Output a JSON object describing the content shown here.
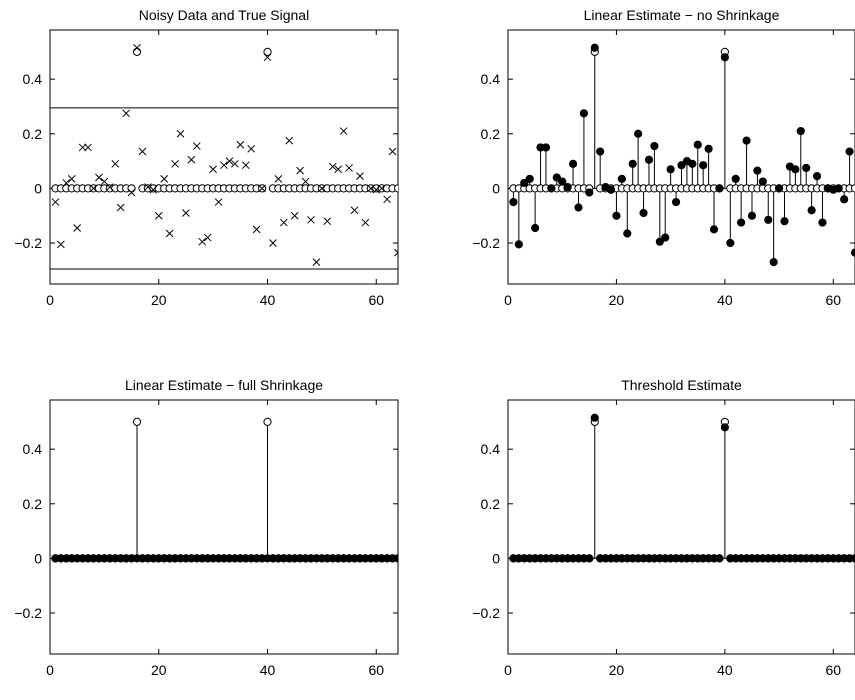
{
  "chart_data": [
    {
      "type": "scatter",
      "title": "Noisy Data and True Signal",
      "xlabel": "",
      "ylabel": "",
      "xlim": [
        0,
        64
      ],
      "ylim": [
        -0.35,
        0.58
      ],
      "xticks": [
        0,
        20,
        40,
        60
      ],
      "yticks": [
        -0.2,
        0,
        0.2,
        0.4
      ],
      "ytick_labels": [
        "−0.2",
        "0",
        "0.2",
        "0.4"
      ],
      "grid": false,
      "hlines": [
        0.295,
        -0.295
      ],
      "series": [
        {
          "marker": "circle",
          "x": [
            1,
            2,
            3,
            4,
            5,
            6,
            7,
            8,
            9,
            10,
            11,
            12,
            13,
            14,
            15,
            16,
            17,
            18,
            19,
            20,
            21,
            22,
            23,
            24,
            25,
            26,
            27,
            28,
            29,
            30,
            31,
            32,
            33,
            34,
            35,
            36,
            37,
            38,
            39,
            40,
            41,
            42,
            43,
            44,
            45,
            46,
            47,
            48,
            49,
            50,
            51,
            52,
            53,
            54,
            55,
            56,
            57,
            58,
            59,
            60,
            61,
            62,
            63,
            64
          ],
          "values": [
            0,
            0,
            0,
            0,
            0,
            0,
            0,
            0,
            0,
            0,
            0,
            0,
            0,
            0,
            0,
            0.5,
            0,
            0,
            0,
            0,
            0,
            0,
            0,
            0,
            0,
            0,
            0,
            0,
            0,
            0,
            0,
            0,
            0,
            0,
            0,
            0,
            0,
            0,
            0,
            0.5,
            0,
            0,
            0,
            0,
            0,
            0,
            0,
            0,
            0,
            0,
            0,
            0,
            0,
            0,
            0,
            0,
            0,
            0,
            0,
            0,
            0,
            0,
            0,
            0
          ]
        },
        {
          "marker": "x",
          "x": [
            1,
            2,
            3,
            4,
            5,
            6,
            7,
            8,
            9,
            10,
            11,
            12,
            13,
            14,
            15,
            16,
            17,
            18,
            19,
            20,
            21,
            22,
            23,
            24,
            25,
            26,
            27,
            28,
            29,
            30,
            31,
            32,
            33,
            34,
            35,
            36,
            37,
            38,
            39,
            40,
            41,
            42,
            43,
            44,
            45,
            46,
            47,
            48,
            49,
            50,
            51,
            52,
            53,
            54,
            55,
            56,
            57,
            58,
            59,
            60,
            61,
            62,
            63,
            64
          ],
          "values": [
            -0.05,
            -0.205,
            0.02,
            0.035,
            -0.145,
            0.15,
            0.15,
            0,
            0.04,
            0.025,
            0.005,
            0.09,
            -0.07,
            0.275,
            -0.015,
            0.515,
            0.135,
            0.005,
            -0.005,
            -0.1,
            0.035,
            -0.165,
            0.09,
            0.2,
            -0.09,
            0.105,
            0.155,
            -0.195,
            -0.18,
            0.07,
            -0.05,
            0.085,
            0.1,
            0.09,
            0.16,
            0.085,
            0.145,
            -0.15,
            0,
            0.48,
            -0.2,
            0.035,
            -0.125,
            0.175,
            -0.1,
            0.065,
            0.025,
            -0.115,
            -0.27,
            0,
            -0.12,
            0.08,
            0.07,
            0.21,
            0.075,
            -0.08,
            0.045,
            -0.125,
            0,
            -0.005,
            0,
            -0.04,
            0.135,
            -0.235
          ]
        }
      ]
    },
    {
      "type": "stem",
      "title": "Linear Estimate − no Shrinkage",
      "xlabel": "",
      "ylabel": "",
      "xlim": [
        0,
        64
      ],
      "ylim": [
        -0.35,
        0.58
      ],
      "xticks": [
        0,
        20,
        40,
        60
      ],
      "yticks": [
        -0.2,
        0,
        0.2,
        0.4
      ],
      "ytick_labels": [
        "−0.2",
        "0",
        "0.2",
        "0.4"
      ],
      "grid": false,
      "series": [
        {
          "marker": "circle",
          "x": [
            1,
            2,
            3,
            4,
            5,
            6,
            7,
            8,
            9,
            10,
            11,
            12,
            13,
            14,
            15,
            16,
            17,
            18,
            19,
            20,
            21,
            22,
            23,
            24,
            25,
            26,
            27,
            28,
            29,
            30,
            31,
            32,
            33,
            34,
            35,
            36,
            37,
            38,
            39,
            40,
            41,
            42,
            43,
            44,
            45,
            46,
            47,
            48,
            49,
            50,
            51,
            52,
            53,
            54,
            55,
            56,
            57,
            58,
            59,
            60,
            61,
            62,
            63,
            64
          ],
          "values": [
            0,
            0,
            0,
            0,
            0,
            0,
            0,
            0,
            0,
            0,
            0,
            0,
            0,
            0,
            0,
            0.5,
            0,
            0,
            0,
            0,
            0,
            0,
            0,
            0,
            0,
            0,
            0,
            0,
            0,
            0,
            0,
            0,
            0,
            0,
            0,
            0,
            0,
            0,
            0,
            0.5,
            0,
            0,
            0,
            0,
            0,
            0,
            0,
            0,
            0,
            0,
            0,
            0,
            0,
            0,
            0,
            0,
            0,
            0,
            0,
            0,
            0,
            0,
            0,
            0
          ]
        },
        {
          "marker": "dot-stem",
          "x": [
            1,
            2,
            3,
            4,
            5,
            6,
            7,
            8,
            9,
            10,
            11,
            12,
            13,
            14,
            15,
            16,
            17,
            18,
            19,
            20,
            21,
            22,
            23,
            24,
            25,
            26,
            27,
            28,
            29,
            30,
            31,
            32,
            33,
            34,
            35,
            36,
            37,
            38,
            39,
            40,
            41,
            42,
            43,
            44,
            45,
            46,
            47,
            48,
            49,
            50,
            51,
            52,
            53,
            54,
            55,
            56,
            57,
            58,
            59,
            60,
            61,
            62,
            63,
            64
          ],
          "values": [
            -0.05,
            -0.205,
            0.02,
            0.035,
            -0.145,
            0.15,
            0.15,
            0,
            0.04,
            0.025,
            0.005,
            0.09,
            -0.07,
            0.275,
            -0.015,
            0.515,
            0.135,
            0.005,
            -0.005,
            -0.1,
            0.035,
            -0.165,
            0.09,
            0.2,
            -0.09,
            0.105,
            0.155,
            -0.195,
            -0.18,
            0.07,
            -0.05,
            0.085,
            0.1,
            0.09,
            0.16,
            0.085,
            0.145,
            -0.15,
            0,
            0.48,
            -0.2,
            0.035,
            -0.125,
            0.175,
            -0.1,
            0.065,
            0.025,
            -0.115,
            -0.27,
            0,
            -0.12,
            0.08,
            0.07,
            0.21,
            0.075,
            -0.08,
            0.045,
            -0.125,
            0,
            -0.005,
            0,
            -0.04,
            0.135,
            -0.235
          ]
        }
      ]
    },
    {
      "type": "stem",
      "title": "Linear Estimate − full Shrinkage",
      "xlabel": "",
      "ylabel": "",
      "xlim": [
        0,
        64
      ],
      "ylim": [
        -0.35,
        0.58
      ],
      "xticks": [
        0,
        20,
        40,
        60
      ],
      "yticks": [
        -0.2,
        0,
        0.2,
        0.4
      ],
      "ytick_labels": [
        "−0.2",
        "0",
        "0.2",
        "0.4"
      ],
      "grid": false,
      "series": [
        {
          "marker": "circle",
          "x": [
            1,
            2,
            3,
            4,
            5,
            6,
            7,
            8,
            9,
            10,
            11,
            12,
            13,
            14,
            15,
            16,
            17,
            18,
            19,
            20,
            21,
            22,
            23,
            24,
            25,
            26,
            27,
            28,
            29,
            30,
            31,
            32,
            33,
            34,
            35,
            36,
            37,
            38,
            39,
            40,
            41,
            42,
            43,
            44,
            45,
            46,
            47,
            48,
            49,
            50,
            51,
            52,
            53,
            54,
            55,
            56,
            57,
            58,
            59,
            60,
            61,
            62,
            63,
            64
          ],
          "values": [
            0,
            0,
            0,
            0,
            0,
            0,
            0,
            0,
            0,
            0,
            0,
            0,
            0,
            0,
            0,
            0.5,
            0,
            0,
            0,
            0,
            0,
            0,
            0,
            0,
            0,
            0,
            0,
            0,
            0,
            0,
            0,
            0,
            0,
            0,
            0,
            0,
            0,
            0,
            0,
            0.5,
            0,
            0,
            0,
            0,
            0,
            0,
            0,
            0,
            0,
            0,
            0,
            0,
            0,
            0,
            0,
            0,
            0,
            0,
            0,
            0,
            0,
            0,
            0,
            0
          ]
        },
        {
          "marker": "dot-stem",
          "x": [
            1,
            2,
            3,
            4,
            5,
            6,
            7,
            8,
            9,
            10,
            11,
            12,
            13,
            14,
            15,
            16,
            17,
            18,
            19,
            20,
            21,
            22,
            23,
            24,
            25,
            26,
            27,
            28,
            29,
            30,
            31,
            32,
            33,
            34,
            35,
            36,
            37,
            38,
            39,
            40,
            41,
            42,
            43,
            44,
            45,
            46,
            47,
            48,
            49,
            50,
            51,
            52,
            53,
            54,
            55,
            56,
            57,
            58,
            59,
            60,
            61,
            62,
            63,
            64
          ],
          "values": [
            0,
            0,
            0,
            0,
            0,
            0,
            0,
            0,
            0,
            0,
            0,
            0,
            0,
            0,
            0,
            0,
            0,
            0,
            0,
            0,
            0,
            0,
            0,
            0,
            0,
            0,
            0,
            0,
            0,
            0,
            0,
            0,
            0,
            0,
            0,
            0,
            0,
            0,
            0,
            0,
            0,
            0,
            0,
            0,
            0,
            0,
            0,
            0,
            0,
            0,
            0,
            0,
            0,
            0,
            0,
            0,
            0,
            0,
            0,
            0,
            0,
            0,
            0,
            0
          ]
        }
      ]
    },
    {
      "type": "stem",
      "title": "Threshold Estimate",
      "xlabel": "",
      "ylabel": "",
      "xlim": [
        0,
        64
      ],
      "ylim": [
        -0.35,
        0.58
      ],
      "xticks": [
        0,
        20,
        40,
        60
      ],
      "yticks": [
        -0.2,
        0,
        0.2,
        0.4
      ],
      "ytick_labels": [
        "−0.2",
        "0",
        "0.2",
        "0.4"
      ],
      "grid": false,
      "series": [
        {
          "marker": "circle",
          "x": [
            1,
            2,
            3,
            4,
            5,
            6,
            7,
            8,
            9,
            10,
            11,
            12,
            13,
            14,
            15,
            16,
            17,
            18,
            19,
            20,
            21,
            22,
            23,
            24,
            25,
            26,
            27,
            28,
            29,
            30,
            31,
            32,
            33,
            34,
            35,
            36,
            37,
            38,
            39,
            40,
            41,
            42,
            43,
            44,
            45,
            46,
            47,
            48,
            49,
            50,
            51,
            52,
            53,
            54,
            55,
            56,
            57,
            58,
            59,
            60,
            61,
            62,
            63,
            64
          ],
          "values": [
            0,
            0,
            0,
            0,
            0,
            0,
            0,
            0,
            0,
            0,
            0,
            0,
            0,
            0,
            0,
            0.5,
            0,
            0,
            0,
            0,
            0,
            0,
            0,
            0,
            0,
            0,
            0,
            0,
            0,
            0,
            0,
            0,
            0,
            0,
            0,
            0,
            0,
            0,
            0,
            0.5,
            0,
            0,
            0,
            0,
            0,
            0,
            0,
            0,
            0,
            0,
            0,
            0,
            0,
            0,
            0,
            0,
            0,
            0,
            0,
            0,
            0,
            0,
            0,
            0
          ]
        },
        {
          "marker": "dot-stem",
          "x": [
            1,
            2,
            3,
            4,
            5,
            6,
            7,
            8,
            9,
            10,
            11,
            12,
            13,
            14,
            15,
            16,
            17,
            18,
            19,
            20,
            21,
            22,
            23,
            24,
            25,
            26,
            27,
            28,
            29,
            30,
            31,
            32,
            33,
            34,
            35,
            36,
            37,
            38,
            39,
            40,
            41,
            42,
            43,
            44,
            45,
            46,
            47,
            48,
            49,
            50,
            51,
            52,
            53,
            54,
            55,
            56,
            57,
            58,
            59,
            60,
            61,
            62,
            63,
            64
          ],
          "values": [
            0,
            0,
            0,
            0,
            0,
            0,
            0,
            0,
            0,
            0,
            0,
            0,
            0,
            0,
            0,
            0.515,
            0,
            0,
            0,
            0,
            0,
            0,
            0,
            0,
            0,
            0,
            0,
            0,
            0,
            0,
            0,
            0,
            0,
            0,
            0,
            0,
            0,
            0,
            0,
            0.48,
            0,
            0,
            0,
            0,
            0,
            0,
            0,
            0,
            0,
            0,
            0,
            0,
            0,
            0,
            0,
            0,
            0,
            0,
            0,
            0,
            0,
            0,
            0,
            0
          ]
        }
      ]
    }
  ]
}
